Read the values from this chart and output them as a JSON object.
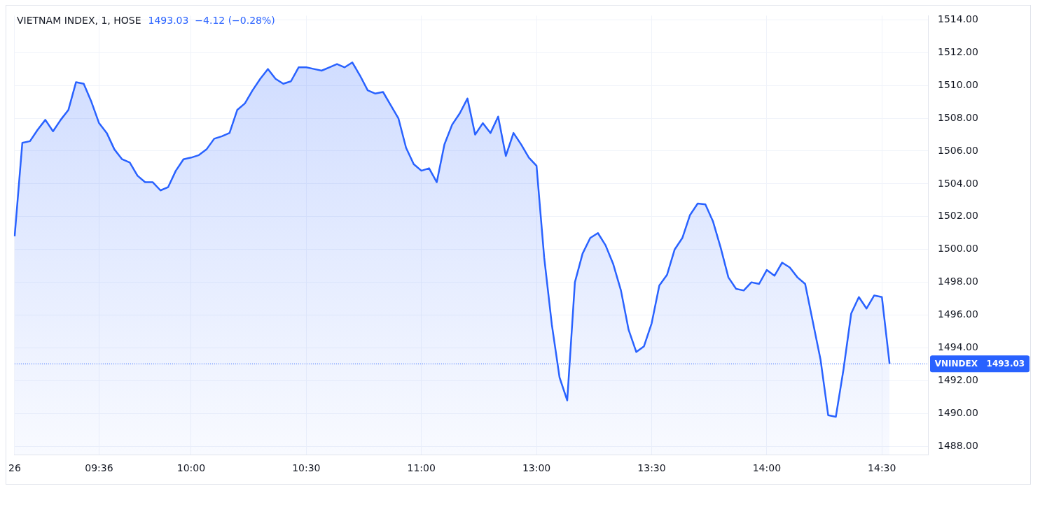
{
  "chart_data": {
    "type": "area",
    "title": "VIETNAM INDEX, 1, HOSE",
    "subtitle": "1493.03  −4.12 (−0.28%)",
    "categories": [
      "26",
      null,
      null,
      null,
      null,
      null,
      null,
      null,
      null,
      null,
      null,
      "09:36",
      null,
      null,
      null,
      null,
      null,
      null,
      null,
      null,
      null,
      null,
      null,
      "10:00",
      null,
      null,
      null,
      null,
      null,
      null,
      null,
      null,
      null,
      null,
      null,
      null,
      null,
      null,
      "10:30",
      null,
      null,
      null,
      null,
      null,
      null,
      null,
      null,
      null,
      null,
      null,
      null,
      null,
      null,
      "11:00",
      null,
      null,
      null,
      null,
      null,
      null,
      null,
      null,
      null,
      null,
      null,
      null,
      null,
      null,
      "13:00",
      null,
      null,
      null,
      null,
      null,
      null,
      null,
      null,
      null,
      null,
      null,
      null,
      null,
      null,
      "13:30",
      null,
      null,
      null,
      null,
      null,
      null,
      null,
      null,
      null,
      null,
      null,
      null,
      null,
      null,
      "14:00",
      null,
      null,
      null,
      null,
      null,
      null,
      null,
      null,
      null,
      null,
      null,
      null,
      null,
      null,
      "14:30",
      null,
      null,
      null,
      null,
      null,
      null
    ],
    "series": [
      {
        "color": "#2962ff",
        "values": [
          1500.8,
          1506.5,
          1506.6,
          1507.3,
          1507.9,
          1507.2,
          1507.9,
          1508.5,
          1510.2,
          1510.1,
          1509.0,
          1507.7,
          1507.1,
          1506.1,
          1505.5,
          1505.3,
          1504.5,
          1504.1,
          1504.1,
          1503.6,
          1503.8,
          1504.8,
          1505.5,
          1505.6,
          1505.75,
          1506.1,
          1506.75,
          1506.9,
          1507.1,
          1508.5,
          1508.9,
          1509.7,
          1510.4,
          1511.0,
          1510.4,
          1510.1,
          1510.25,
          1511.1,
          1511.1,
          1511.0,
          1510.9,
          1511.1,
          1511.3,
          1511.1,
          1511.4,
          1510.6,
          1509.7,
          1509.5,
          1509.6,
          1508.8,
          1508.0,
          1506.2,
          1505.2,
          1504.8,
          1504.95,
          1504.1,
          1506.4,
          1507.6,
          1508.3,
          1509.2,
          1507.0,
          1507.7,
          1507.1,
          1508.1,
          1505.7,
          1507.1,
          1506.4,
          1505.6,
          1505.1,
          1499.5,
          1495.4,
          1492.2,
          1490.8,
          1498.0,
          1499.75,
          1500.7,
          1501.0,
          1500.25,
          1499.1,
          1497.5,
          1495.1,
          1493.75,
          1494.1,
          1495.5,
          1497.8,
          1498.45,
          1500.0,
          1500.7,
          1502.1,
          1502.8,
          1502.75,
          1501.7,
          1500.1,
          1498.3,
          1497.6,
          1497.5,
          1498.0,
          1497.9,
          1498.75,
          1498.4,
          1499.2,
          1498.9,
          1498.3,
          1497.9,
          1495.6,
          1493.3,
          1489.9,
          1489.8,
          1492.7,
          1496.1,
          1497.1,
          1496.4,
          1497.2,
          1497.1,
          1493.03,
          null,
          null,
          null,
          null,
          null
        ]
      }
    ],
    "ylim": [
      1487.5,
      1514.25
    ],
    "yticks": [
      {
        "value": 1488,
        "label": "1488.00"
      },
      {
        "value": 1490,
        "label": "1490.00"
      },
      {
        "value": 1492,
        "label": "1492.00"
      },
      {
        "value": 1494,
        "label": "1494.00"
      },
      {
        "value": 1496,
        "label": "1496.00"
      },
      {
        "value": 1498,
        "label": "1498.00"
      },
      {
        "value": 1500,
        "label": "1500.00"
      },
      {
        "value": 1502,
        "label": "1502.00"
      },
      {
        "value": 1504,
        "label": "1504.00"
      },
      {
        "value": 1506,
        "label": "1506.00"
      },
      {
        "value": 1508,
        "label": "1508.00"
      },
      {
        "value": 1510,
        "label": "1510.00"
      },
      {
        "value": 1512,
        "label": "1512.00"
      },
      {
        "value": 1514,
        "label": "1514.00"
      }
    ],
    "ref_lines": [
      {
        "axis": "y",
        "value": 1493.03,
        "label": "VNINDEX   1493.03",
        "color": "#2962ff",
        "line_style": "dotted"
      }
    ],
    "grid": true,
    "legend": false,
    "marker": "none",
    "line_style": "solid"
  }
}
